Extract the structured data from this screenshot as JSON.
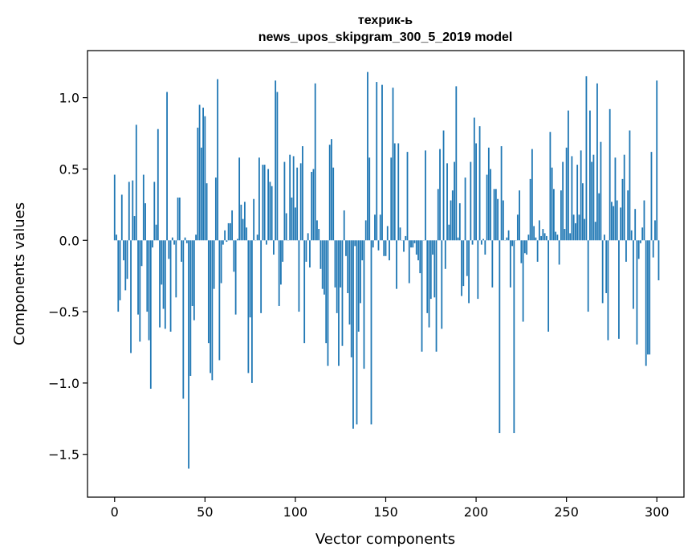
{
  "chart_data": {
    "type": "bar",
    "title": "техрик-ь",
    "subtitle": "news_upos_skipgram_300_5_2019 model",
    "xlabel": "Vector components",
    "ylabel": "Components values",
    "xlim": [
      -15,
      315
    ],
    "ylim": [
      -1.8,
      1.33
    ],
    "xticks": [
      0,
      50,
      100,
      150,
      200,
      250,
      300
    ],
    "xtick_labels": [
      "0",
      "50",
      "100",
      "150",
      "200",
      "250",
      "300"
    ],
    "yticks": [
      -1.5,
      -1.0,
      -0.5,
      0.0,
      0.5,
      1.0
    ],
    "ytick_labels": [
      "−1.5",
      "−1.0",
      "−0.5",
      "0.0",
      "0.5",
      "1.0"
    ],
    "grid": false,
    "bar_color": "#1f77b4",
    "values": [
      0.46,
      0.04,
      -0.5,
      -0.42,
      0.32,
      -0.14,
      -0.35,
      -0.27,
      0.41,
      -0.79,
      0.42,
      0.17,
      0.81,
      -0.52,
      -0.71,
      -0.18,
      0.46,
      0.26,
      -0.5,
      -0.7,
      -1.04,
      -0.05,
      0.41,
      0.11,
      0.78,
      -0.61,
      -0.31,
      -0.48,
      -0.62,
      1.04,
      -0.13,
      -0.64,
      0.02,
      -0.03,
      -0.4,
      0.3,
      0.3,
      -0.15,
      -1.11,
      0.02,
      -0.02,
      -1.6,
      -0.95,
      -0.46,
      -0.56,
      0.04,
      0.79,
      0.95,
      0.65,
      0.93,
      0.87,
      0.4,
      -0.72,
      -0.93,
      -0.98,
      -0.34,
      0.44,
      1.13,
      -0.84,
      -0.3,
      -0.03,
      0.07,
      -0.01,
      0.12,
      0.12,
      0.21,
      -0.22,
      -0.52,
      0.01,
      0.58,
      0.25,
      0.15,
      0.27,
      0.09,
      -0.93,
      -0.54,
      -1.0,
      0.29,
      0.0,
      0.04,
      0.58,
      -0.51,
      0.53,
      0.53,
      -0.03,
      0.5,
      0.41,
      0.38,
      -0.1,
      1.12,
      1.04,
      -0.46,
      -0.31,
      -0.15,
      0.55,
      0.19,
      0.0,
      0.6,
      0.3,
      0.59,
      0.23,
      0.51,
      -0.5,
      0.54,
      0.66,
      -0.72,
      -0.15,
      0.05,
      -0.19,
      0.48,
      0.5,
      1.1,
      0.14,
      0.08,
      -0.2,
      -0.34,
      -0.38,
      -0.72,
      -0.88,
      0.67,
      0.71,
      0.51,
      -0.33,
      -0.51,
      -0.88,
      -0.33,
      -0.74,
      0.21,
      -0.11,
      -0.37,
      -0.59,
      -0.82,
      -1.32,
      -0.04,
      -1.29,
      -0.64,
      -0.44,
      -0.14,
      -0.9,
      0.14,
      1.18,
      0.58,
      -1.29,
      -0.05,
      0.18,
      1.11,
      -0.07,
      0.18,
      1.09,
      -0.11,
      -0.11,
      0.1,
      -0.14,
      0.58,
      1.07,
      0.68,
      -0.34,
      0.68,
      0.09,
      0.0,
      -0.08,
      0.03,
      0.62,
      -0.3,
      -0.05,
      -0.05,
      -0.02,
      -0.1,
      -0.14,
      -0.23,
      -0.78,
      0.0,
      0.63,
      -0.51,
      -0.61,
      -0.41,
      -0.1,
      -0.4,
      -0.78,
      0.36,
      0.64,
      -0.62,
      0.77,
      -0.2,
      0.54,
      0.11,
      0.28,
      0.35,
      0.55,
      1.08,
      0.02,
      0.26,
      -0.39,
      -0.32,
      0.44,
      -0.25,
      -0.44,
      0.55,
      -0.03,
      0.86,
      0.68,
      -0.41,
      0.8,
      -0.03,
      0.01,
      -0.1,
      0.46,
      0.65,
      0.5,
      -0.33,
      0.36,
      0.36,
      0.29,
      -1.35,
      0.66,
      0.28,
      0.0,
      0.02,
      0.07,
      -0.33,
      -0.04,
      -1.35,
      0.0,
      0.18,
      0.35,
      -0.16,
      -0.57,
      -0.09,
      -0.1,
      0.04,
      0.43,
      0.64,
      0.1,
      0.02,
      -0.15,
      0.14,
      0.03,
      0.08,
      0.05,
      0.03,
      -0.64,
      0.76,
      0.51,
      0.36,
      0.06,
      0.04,
      -0.17,
      0.35,
      0.55,
      0.08,
      0.65,
      0.91,
      0.05,
      0.59,
      0.18,
      0.12,
      0.53,
      0.18,
      0.63,
      0.4,
      0.15,
      1.15,
      -0.5,
      0.91,
      0.55,
      0.6,
      0.13,
      1.1,
      0.33,
      0.69,
      -0.44,
      0.04,
      -0.37,
      -0.7,
      0.92,
      0.27,
      0.24,
      0.58,
      0.28,
      -0.69,
      0.23,
      0.43,
      0.6,
      -0.15,
      0.35,
      0.77,
      0.07,
      -0.48,
      0.22,
      -0.73,
      -0.13,
      -0.02,
      0.09,
      0.28,
      -0.88,
      -0.8,
      -0.8,
      0.62,
      -0.12,
      0.14,
      1.12,
      -0.28
    ]
  }
}
